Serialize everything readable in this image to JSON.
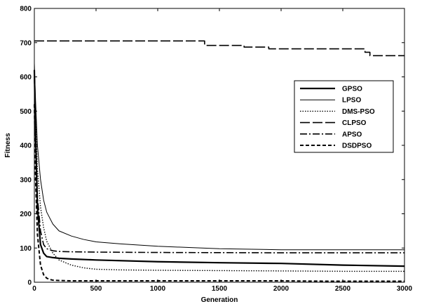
{
  "chart_data": {
    "type": "line",
    "xlabel": "Generation",
    "ylabel": "Fitness",
    "xlim": [
      0,
      3000
    ],
    "ylim": [
      0,
      800
    ],
    "xticks": [
      0,
      500,
      1000,
      1500,
      2000,
      2500,
      3000
    ],
    "yticks": [
      0,
      100,
      200,
      300,
      400,
      500,
      600,
      700,
      800
    ],
    "xtick_labels": [
      "0",
      "500",
      "1000",
      "1500",
      "2000",
      "2500",
      "3000"
    ],
    "ytick_labels": [
      "0",
      "100",
      "200",
      "300",
      "400",
      "500",
      "600",
      "700",
      "800"
    ],
    "grid": false,
    "legend_position": "upper-right",
    "series": [
      {
        "name": "GPSO",
        "style": "solid-thick",
        "color": "#000000",
        "x": [
          0,
          10,
          25,
          50,
          75,
          100,
          150,
          200,
          300,
          500,
          1000,
          1500,
          2000,
          2500,
          3000
        ],
        "y": [
          620,
          430,
          220,
          110,
          85,
          75,
          72,
          70,
          68,
          65,
          60,
          57,
          55,
          50,
          47
        ]
      },
      {
        "name": "LPSO",
        "style": "solid-thin",
        "color": "#000000",
        "x": [
          0,
          10,
          25,
          50,
          75,
          100,
          150,
          200,
          300,
          400,
          500,
          700,
          1000,
          1500,
          2000,
          2500,
          3000
        ],
        "y": [
          640,
          530,
          400,
          300,
          240,
          205,
          170,
          150,
          135,
          125,
          118,
          112,
          105,
          98,
          95,
          95,
          95
        ]
      },
      {
        "name": "DMS-PSO",
        "style": "dotted",
        "color": "#000000",
        "x": [
          0,
          10,
          25,
          50,
          75,
          100,
          150,
          200,
          300,
          400,
          500,
          700,
          1000,
          1500,
          2000,
          2500,
          3000
        ],
        "y": [
          620,
          480,
          330,
          220,
          160,
          120,
          85,
          65,
          50,
          42,
          38,
          36,
          35,
          34,
          33,
          32,
          32
        ]
      },
      {
        "name": "CLPSO",
        "style": "dashed-long",
        "color": "#000000",
        "x": [
          0,
          1380,
          1380,
          1700,
          1700,
          1900,
          1900,
          2680,
          2680,
          2720,
          2720,
          3000
        ],
        "y": [
          705,
          705,
          692,
          692,
          687,
          687,
          682,
          682,
          672,
          672,
          662,
          662
        ]
      },
      {
        "name": "APSO",
        "style": "dashdot",
        "color": "#000000",
        "x": [
          0,
          10,
          25,
          50,
          75,
          100,
          150,
          200,
          300,
          500,
          1000,
          2000,
          3000
        ],
        "y": [
          600,
          420,
          250,
          150,
          110,
          98,
          92,
          90,
          89,
          88,
          87,
          86,
          86
        ]
      },
      {
        "name": "DSDPSO",
        "style": "dashed-short",
        "color": "#000000",
        "x": [
          0,
          10,
          25,
          50,
          75,
          100,
          125,
          150,
          200,
          300,
          500,
          1000,
          2000,
          2400,
          3000
        ],
        "y": [
          520,
          300,
          140,
          50,
          22,
          12,
          8,
          6,
          5,
          4,
          4,
          4,
          4,
          3,
          3
        ]
      }
    ]
  }
}
